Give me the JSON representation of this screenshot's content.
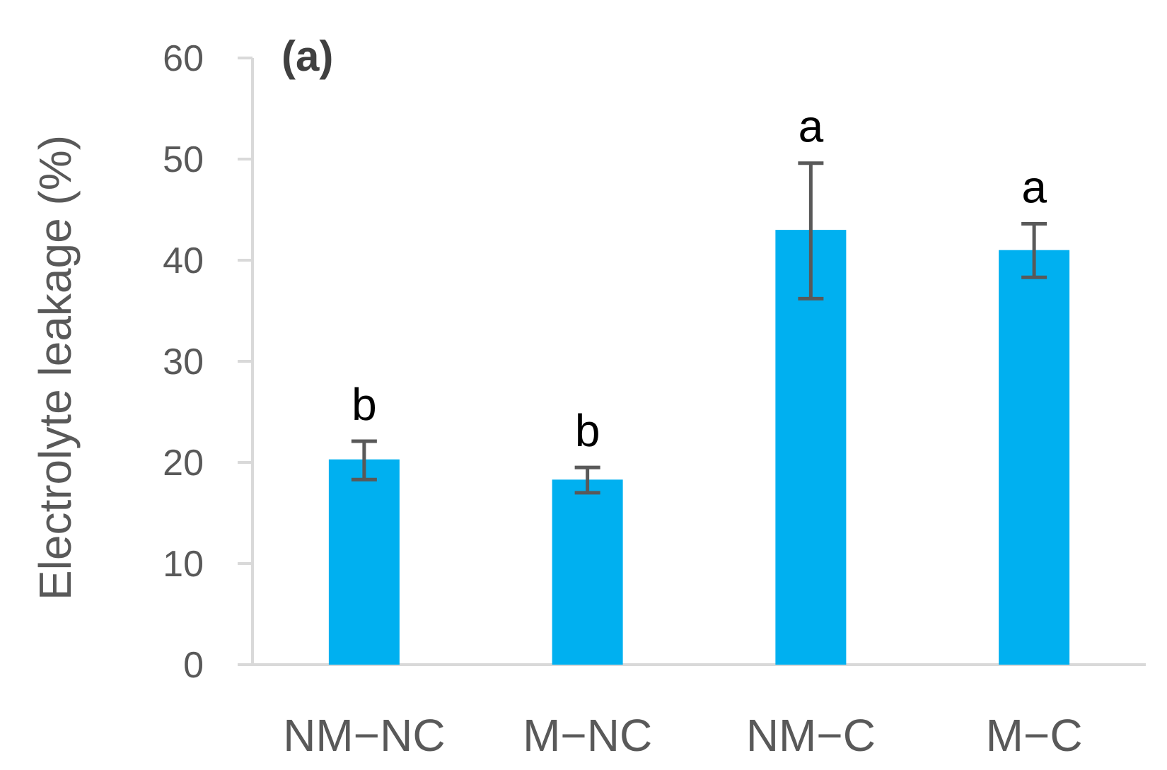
{
  "chart_data": {
    "type": "bar",
    "panel_label": "(a)",
    "ylabel": "Electrolyte leakage (%)",
    "xlabel": "",
    "ylim": [
      0,
      60
    ],
    "yticks": [
      0,
      10,
      20,
      30,
      40,
      50,
      60
    ],
    "ytick_labels": [
      "0",
      "10",
      "20",
      "30",
      "40",
      "50",
      "60"
    ],
    "categories": [
      "NM−NC",
      "M−NC",
      "NM−C",
      "M−C"
    ],
    "values": [
      20.3,
      18.3,
      43.0,
      41.0
    ],
    "error_low": [
      18.3,
      17.0,
      36.2,
      38.3
    ],
    "error_high": [
      22.1,
      19.5,
      49.6,
      43.6
    ],
    "significance_letters": [
      "b",
      "b",
      "a",
      "a"
    ],
    "grid": false,
    "legend": "none",
    "colors": {
      "bar": "#00B0F0",
      "axis": "#D9D9D9",
      "error_bar": "#595959"
    }
  }
}
